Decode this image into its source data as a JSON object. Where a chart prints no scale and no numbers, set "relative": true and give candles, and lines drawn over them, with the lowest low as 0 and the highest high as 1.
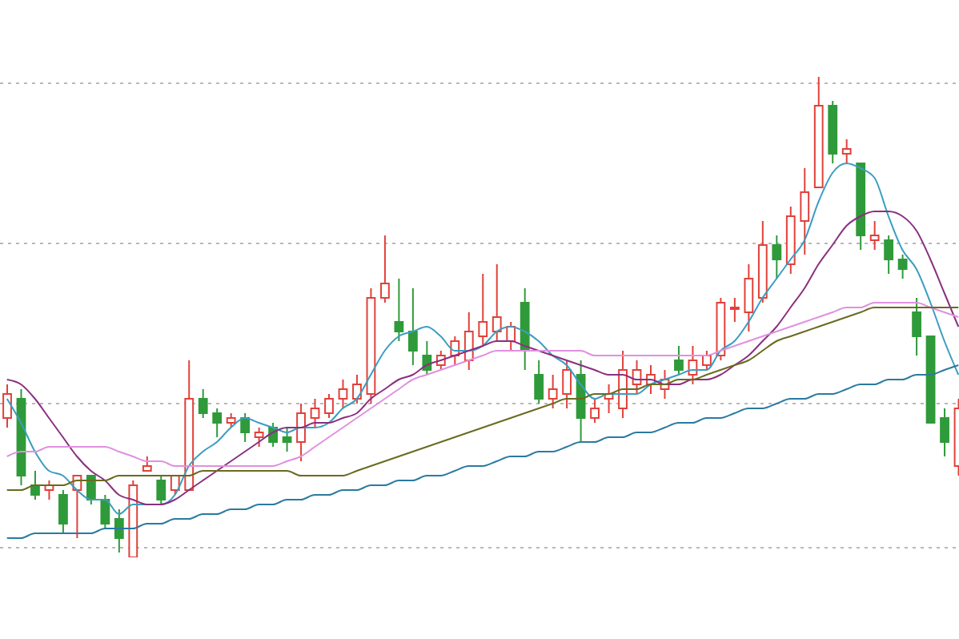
{
  "chart_data": {
    "type": "candlestick",
    "relative": true,
    "grid": "y",
    "tick_labels": false,
    "categories": [
      null,
      null,
      null,
      null,
      null,
      null,
      null,
      null,
      null,
      null,
      null,
      null,
      null,
      null,
      null,
      null,
      null,
      null,
      null,
      null,
      null,
      null,
      null,
      null,
      null,
      null,
      null,
      null,
      null,
      null,
      null,
      null,
      null,
      null,
      null,
      null,
      null,
      null,
      null,
      null,
      null,
      null,
      null,
      null,
      null,
      null,
      null,
      null,
      null,
      null,
      null,
      null,
      null,
      null,
      null,
      null,
      null,
      null,
      null,
      null,
      null,
      null,
      null,
      null,
      null,
      null,
      null,
      null,
      null
    ],
    "ohlc": [
      [
        0.29,
        0.36,
        0.27,
        0.34
      ],
      [
        0.33,
        0.35,
        0.15,
        0.17
      ],
      [
        0.15,
        0.18,
        0.12,
        0.13
      ],
      [
        0.14,
        0.16,
        0.12,
        0.15
      ],
      [
        0.13,
        0.14,
        0.05,
        0.07
      ],
      [
        0.14,
        0.17,
        0.04,
        0.17
      ],
      [
        0.17,
        0.17,
        0.11,
        0.12
      ],
      [
        0.12,
        0.13,
        0.06,
        0.07
      ],
      [
        0.08,
        0.1,
        0.01,
        0.04
      ],
      [
        0,
        0.16,
        0,
        0.15
      ],
      [
        0.18,
        0.21,
        0.18,
        0.19
      ],
      [
        0.16,
        0.17,
        0.11,
        0.12
      ],
      [
        0.14,
        0.17,
        0.13,
        0.17
      ],
      [
        0.14,
        0.41,
        0.14,
        0.33
      ],
      [
        0.33,
        0.35,
        0.29,
        0.3
      ],
      [
        0.3,
        0.31,
        0.25,
        0.28
      ],
      [
        0.28,
        0.3,
        0.27,
        0.29
      ],
      [
        0.29,
        0.3,
        0.24,
        0.26
      ],
      [
        0.25,
        0.27,
        0.23,
        0.26
      ],
      [
        0.27,
        0.28,
        0.23,
        0.24
      ],
      [
        0.25,
        0.27,
        0.22,
        0.24
      ],
      [
        0.24,
        0.32,
        0.2,
        0.3
      ],
      [
        0.29,
        0.33,
        0.27,
        0.31
      ],
      [
        0.3,
        0.34,
        0.29,
        0.33
      ],
      [
        0.33,
        0.37,
        0.31,
        0.35
      ],
      [
        0.33,
        0.38,
        0.32,
        0.36
      ],
      [
        0.34,
        0.56,
        0.32,
        0.54
      ],
      [
        0.54,
        0.67,
        0.53,
        0.57
      ],
      [
        0.49,
        0.58,
        0.45,
        0.47
      ],
      [
        0.47,
        0.56,
        0.4,
        0.43
      ],
      [
        0.42,
        0.45,
        0.38,
        0.39
      ],
      [
        0.4,
        0.43,
        0.39,
        0.42
      ],
      [
        0.42,
        0.46,
        0.4,
        0.45
      ],
      [
        0.41,
        0.51,
        0.39,
        0.47
      ],
      [
        0.46,
        0.59,
        0.44,
        0.49
      ],
      [
        0.47,
        0.61,
        0.45,
        0.5
      ],
      [
        0.45,
        0.49,
        0.43,
        0.48
      ],
      [
        0.53,
        0.56,
        0.39,
        0.43
      ],
      [
        0.38,
        0.41,
        0.32,
        0.33
      ],
      [
        0.33,
        0.38,
        0.31,
        0.35
      ],
      [
        0.34,
        0.41,
        0.31,
        0.39
      ],
      [
        0.38,
        0.41,
        0.24,
        0.29
      ],
      [
        0.29,
        0.33,
        0.28,
        0.31
      ],
      [
        0.33,
        0.36,
        0.3,
        0.34
      ],
      [
        0.31,
        0.43,
        0.29,
        0.39
      ],
      [
        0.36,
        0.41,
        0.34,
        0.39
      ],
      [
        0.36,
        0.4,
        0.34,
        0.38
      ],
      [
        0.35,
        0.39,
        0.33,
        0.37
      ],
      [
        0.41,
        0.44,
        0.38,
        0.39
      ],
      [
        0.38,
        0.44,
        0.36,
        0.41
      ],
      [
        0.4,
        0.43,
        0.39,
        0.42
      ],
      [
        0.42,
        0.54,
        0.41,
        0.53
      ],
      [
        0.52,
        0.54,
        0.49,
        0.52
      ],
      [
        0.51,
        0.61,
        0.47,
        0.58
      ],
      [
        0.54,
        0.7,
        0.53,
        0.65
      ],
      [
        0.65,
        0.67,
        0.58,
        0.62
      ],
      [
        0.61,
        0.73,
        0.59,
        0.71
      ],
      [
        0.7,
        0.81,
        0.63,
        0.76
      ],
      [
        0.77,
        1,
        0.77,
        0.94
      ],
      [
        0.94,
        0.95,
        0.82,
        0.84
      ],
      [
        0.84,
        0.87,
        0.82,
        0.85
      ],
      [
        0.82,
        0.82,
        0.64,
        0.67
      ],
      [
        0.66,
        0.7,
        0.64,
        0.67
      ],
      [
        0.66,
        0.67,
        0.59,
        0.62
      ],
      [
        0.62,
        0.63,
        0.58,
        0.6
      ],
      [
        0.51,
        0.54,
        0.42,
        0.46
      ],
      [
        0.46,
        0.46,
        0.28,
        0.28
      ],
      [
        0.29,
        0.31,
        0.21,
        0.24
      ],
      [
        0.19,
        0.33,
        0.17,
        0.31
      ]
    ],
    "colors": [
      "#e2403a",
      "#2f9a3a",
      "#2f9a3a",
      "#e2403a",
      "#2f9a3a",
      "#e2403a",
      "#2f9a3a",
      "#2f9a3a",
      "#2f9a3a",
      "#e2403a",
      "#e2403a",
      "#2f9a3a",
      "#e2403a",
      "#e2403a",
      "#2f9a3a",
      "#2f9a3a",
      "#e2403a",
      "#2f9a3a",
      "#e2403a",
      "#2f9a3a",
      "#2f9a3a",
      "#e2403a",
      "#e2403a",
      "#e2403a",
      "#e2403a",
      "#e2403a",
      "#e2403a",
      "#e2403a",
      "#2f9a3a",
      "#2f9a3a",
      "#2f9a3a",
      "#e2403a",
      "#e2403a",
      "#e2403a",
      "#e2403a",
      "#e2403a",
      "#e2403a",
      "#2f9a3a",
      "#2f9a3a",
      "#e2403a",
      "#e2403a",
      "#2f9a3a",
      "#e2403a",
      "#e2403a",
      "#e2403a",
      "#e2403a",
      "#e2403a",
      "#e2403a",
      "#2f9a3a",
      "#e2403a",
      "#e2403a",
      "#e2403a",
      "#e2403a",
      "#e2403a",
      "#e2403a",
      "#2f9a3a",
      "#e2403a",
      "#e2403a",
      "#e2403a",
      "#2f9a3a",
      "#e2403a",
      "#2f9a3a",
      "#e2403a",
      "#2f9a3a",
      "#2f9a3a",
      "#2f9a3a",
      "#2f9a3a",
      "#2f9a3a",
      "#e2403a"
    ],
    "series": [
      {
        "type": "line",
        "color": "#3a9ec0",
        "values": [
          0.33,
          0.28,
          0.22,
          0.18,
          0.17,
          0.14,
          0.12,
          0.12,
          0.09,
          0.11,
          0.11,
          0.11,
          0.13,
          0.19,
          0.22,
          0.24,
          0.27,
          0.29,
          0.28,
          0.27,
          0.26,
          0.27,
          0.27,
          0.28,
          0.31,
          0.33,
          0.38,
          0.43,
          0.46,
          0.47,
          0.48,
          0.46,
          0.43,
          0.43,
          0.44,
          0.47,
          0.48,
          0.47,
          0.45,
          0.42,
          0.4,
          0.36,
          0.33,
          0.34,
          0.34,
          0.34,
          0.36,
          0.37,
          0.38,
          0.39,
          0.39,
          0.43,
          0.45,
          0.49,
          0.54,
          0.58,
          0.62,
          0.66,
          0.74,
          0.8,
          0.82,
          0.81,
          0.79,
          0.71,
          0.64,
          0.6,
          0.53,
          0.45,
          0.38
        ]
      },
      {
        "type": "line",
        "color": "#8a3080",
        "values": [
          0.37,
          0.36,
          0.33,
          0.29,
          0.25,
          0.21,
          0.18,
          0.16,
          0.13,
          0.12,
          0.11,
          0.11,
          0.12,
          0.14,
          0.16,
          0.18,
          0.2,
          0.22,
          0.24,
          0.26,
          0.27,
          0.27,
          0.28,
          0.28,
          0.29,
          0.3,
          0.33,
          0.35,
          0.37,
          0.38,
          0.4,
          0.41,
          0.42,
          0.43,
          0.44,
          0.45,
          0.45,
          0.44,
          0.43,
          0.42,
          0.41,
          0.4,
          0.39,
          0.38,
          0.38,
          0.37,
          0.37,
          0.36,
          0.36,
          0.37,
          0.37,
          0.38,
          0.4,
          0.42,
          0.45,
          0.48,
          0.52,
          0.56,
          0.61,
          0.65,
          0.69,
          0.71,
          0.72,
          0.72,
          0.71,
          0.68,
          0.62,
          0.55,
          0.48
        ]
      },
      {
        "type": "line",
        "color": "#e090e0",
        "values": [
          0.21,
          0.22,
          0.22,
          0.23,
          0.23,
          0.23,
          0.23,
          0.23,
          0.22,
          0.21,
          0.2,
          0.2,
          0.19,
          0.19,
          0.19,
          0.19,
          0.19,
          0.19,
          0.19,
          0.19,
          0.2,
          0.21,
          0.23,
          0.25,
          0.27,
          0.29,
          0.31,
          0.33,
          0.35,
          0.37,
          0.38,
          0.39,
          0.4,
          0.41,
          0.42,
          0.43,
          0.43,
          0.43,
          0.43,
          0.43,
          0.43,
          0.43,
          0.42,
          0.42,
          0.42,
          0.42,
          0.42,
          0.42,
          0.42,
          0.42,
          0.42,
          0.43,
          0.44,
          0.45,
          0.46,
          0.47,
          0.48,
          0.49,
          0.5,
          0.51,
          0.52,
          0.52,
          0.53,
          0.53,
          0.53,
          0.53,
          0.52,
          0.51,
          0.5
        ]
      },
      {
        "type": "line",
        "color": "#6a6a20",
        "values": [
          0.14,
          0.14,
          0.15,
          0.15,
          0.15,
          0.16,
          0.16,
          0.16,
          0.17,
          0.17,
          0.17,
          0.17,
          0.17,
          0.17,
          0.18,
          0.18,
          0.18,
          0.18,
          0.18,
          0.18,
          0.18,
          0.17,
          0.17,
          0.17,
          0.17,
          0.18,
          0.19,
          0.2,
          0.21,
          0.22,
          0.23,
          0.24,
          0.25,
          0.26,
          0.27,
          0.28,
          0.29,
          0.3,
          0.31,
          0.32,
          0.33,
          0.33,
          0.34,
          0.34,
          0.35,
          0.35,
          0.36,
          0.36,
          0.37,
          0.37,
          0.38,
          0.39,
          0.4,
          0.41,
          0.43,
          0.45,
          0.46,
          0.47,
          0.48,
          0.49,
          0.5,
          0.51,
          0.52,
          0.52,
          0.52,
          0.52,
          0.52,
          0.52,
          0.52
        ]
      },
      {
        "type": "line",
        "color": "#2a7aa0",
        "values": [
          0.04,
          0.04,
          0.05,
          0.05,
          0.05,
          0.05,
          0.05,
          0.06,
          0.06,
          0.06,
          0.07,
          0.07,
          0.08,
          0.08,
          0.09,
          0.09,
          0.1,
          0.1,
          0.11,
          0.11,
          0.12,
          0.12,
          0.13,
          0.13,
          0.14,
          0.14,
          0.15,
          0.15,
          0.16,
          0.16,
          0.17,
          0.17,
          0.18,
          0.19,
          0.19,
          0.2,
          0.21,
          0.21,
          0.22,
          0.22,
          0.23,
          0.24,
          0.24,
          0.25,
          0.25,
          0.26,
          0.26,
          0.27,
          0.28,
          0.28,
          0.29,
          0.29,
          0.3,
          0.31,
          0.31,
          0.32,
          0.33,
          0.33,
          0.34,
          0.34,
          0.35,
          0.36,
          0.36,
          0.37,
          0.37,
          0.38,
          0.38,
          0.39,
          0.4
        ]
      }
    ]
  }
}
